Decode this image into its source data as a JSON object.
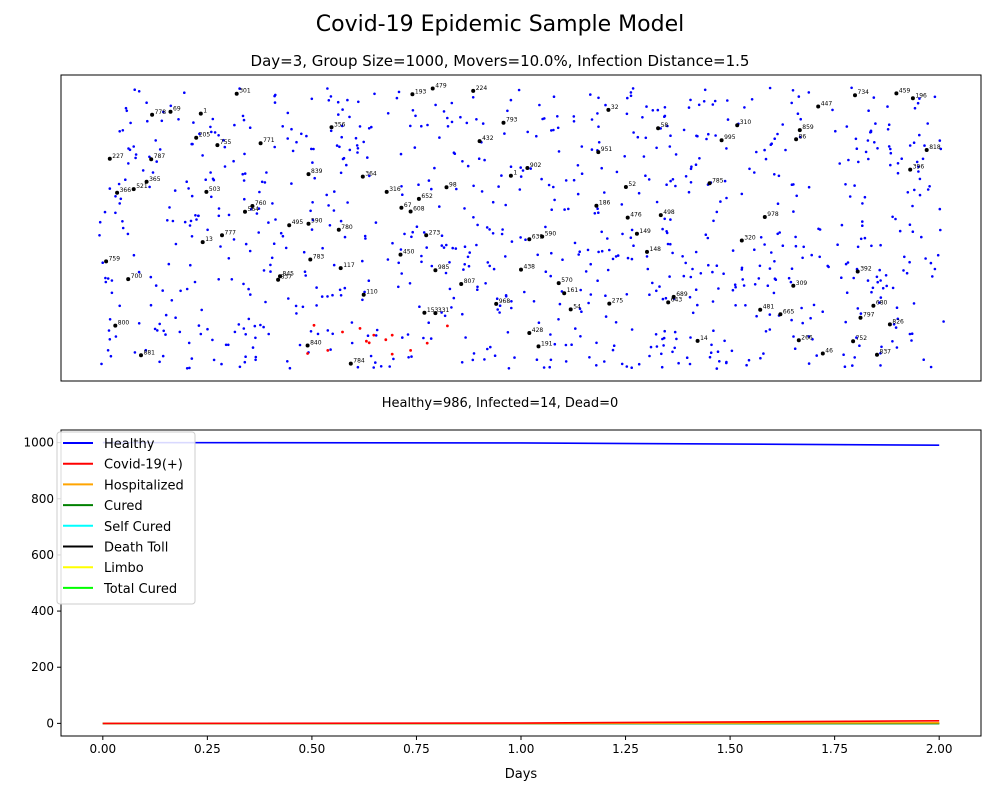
{
  "figure": {
    "title": "Covid-19 Epidemic Sample Model",
    "subtitle": "Day=3, Group Size=1000, Movers=10.0%, Infection Distance=1.5",
    "status_text": "Healthy=986, Infected=14, Dead=0"
  },
  "colors": {
    "healthy": "#0000ff",
    "infected": "#ff0000",
    "hospitalized": "#ffa500",
    "cured": "#008000",
    "self_cured": "#00ffff",
    "death_toll": "#000000",
    "limbo": "#ffff00",
    "total_cured": "#00ff00",
    "labeled_person": "#000000"
  },
  "chart_data": [
    {
      "type": "scatter",
      "title": "Day=3, Group Size=1000, Movers=10.0%, Infection Distance=1.5",
      "xlim": [
        0,
        100
      ],
      "ylim": [
        0,
        100
      ],
      "axes_ticks": false,
      "grid": false,
      "labeled_points": [
        {
          "id": "69",
          "x": 11.9,
          "y": 88
        },
        {
          "id": "778",
          "x": 9.9,
          "y": 87
        },
        {
          "id": "1",
          "x": 15.2,
          "y": 87.4
        },
        {
          "id": "301",
          "x": 19.1,
          "y": 93.9
        },
        {
          "id": "193",
          "x": 38.2,
          "y": 93.7
        },
        {
          "id": "479",
          "x": 40.4,
          "y": 95.6
        },
        {
          "id": "224",
          "x": 44.8,
          "y": 94.8
        },
        {
          "id": "32",
          "x": 59.5,
          "y": 88.6
        },
        {
          "id": "447",
          "x": 82.3,
          "y": 89.7
        },
        {
          "id": "734",
          "x": 86.3,
          "y": 93.4
        },
        {
          "id": "459",
          "x": 90.8,
          "y": 94
        },
        {
          "id": "196",
          "x": 92.6,
          "y": 92.4
        },
        {
          "id": "205",
          "x": 14.7,
          "y": 79.5
        },
        {
          "id": "755",
          "x": 17,
          "y": 77.1
        },
        {
          "id": "771",
          "x": 21.7,
          "y": 77.7
        },
        {
          "id": "356",
          "x": 29.4,
          "y": 82.9
        },
        {
          "id": "793",
          "x": 48.1,
          "y": 84.4
        },
        {
          "id": "432",
          "x": 45.5,
          "y": 78.4
        },
        {
          "id": "58",
          "x": 64.9,
          "y": 82.6
        },
        {
          "id": "310",
          "x": 73.5,
          "y": 83.6
        },
        {
          "id": "995",
          "x": 71.8,
          "y": 78.7
        },
        {
          "id": "859",
          "x": 80.3,
          "y": 82
        },
        {
          "id": "86",
          "x": 79.9,
          "y": 79
        },
        {
          "id": "227",
          "x": 5.3,
          "y": 72.6
        },
        {
          "id": "787",
          "x": 9.8,
          "y": 72.5
        },
        {
          "id": "818",
          "x": 94.1,
          "y": 75.5
        },
        {
          "id": "951",
          "x": 58.4,
          "y": 74.8
        },
        {
          "id": "902",
          "x": 50.7,
          "y": 69.6
        },
        {
          "id": "365",
          "x": 9.3,
          "y": 65.1
        },
        {
          "id": "521",
          "x": 7.9,
          "y": 62.7
        },
        {
          "id": "366",
          "x": 6.1,
          "y": 61.5
        },
        {
          "id": "503",
          "x": 15.8,
          "y": 61.8
        },
        {
          "id": "839",
          "x": 26.9,
          "y": 67.6
        },
        {
          "id": "364",
          "x": 32.8,
          "y": 66.8
        },
        {
          "id": "316",
          "x": 35.4,
          "y": 61.8
        },
        {
          "id": "98",
          "x": 41.9,
          "y": 63.3
        },
        {
          "id": "1b",
          "x": 48.9,
          "y": 67.1
        },
        {
          "id": "52",
          "x": 61.4,
          "y": 63.4
        },
        {
          "id": "785",
          "x": 70.5,
          "y": 64.6
        },
        {
          "id": "396",
          "x": 92.3,
          "y": 69.1
        },
        {
          "id": "760",
          "x": 20.8,
          "y": 57.2
        },
        {
          "id": "564",
          "x": 20,
          "y": 55.3
        },
        {
          "id": "67",
          "x": 37,
          "y": 56.6
        },
        {
          "id": "652",
          "x": 38.9,
          "y": 59.5
        },
        {
          "id": "608",
          "x": 38,
          "y": 55.4
        },
        {
          "id": "186",
          "x": 58.2,
          "y": 57.3
        },
        {
          "id": "498",
          "x": 65.2,
          "y": 54.2
        },
        {
          "id": "476",
          "x": 61.6,
          "y": 53.4
        },
        {
          "id": "978",
          "x": 76.5,
          "y": 53.6
        },
        {
          "id": "13",
          "x": 15.4,
          "y": 45.4
        },
        {
          "id": "777",
          "x": 17.5,
          "y": 47.6
        },
        {
          "id": "495",
          "x": 24.8,
          "y": 50.9
        },
        {
          "id": "590",
          "x": 26.9,
          "y": 51.4
        },
        {
          "id": "780",
          "x": 30.2,
          "y": 49.4
        },
        {
          "id": "273",
          "x": 39.7,
          "y": 47.6
        },
        {
          "id": "639",
          "x": 50.9,
          "y": 46.3
        },
        {
          "id": "590b",
          "x": 52.3,
          "y": 47.2
        },
        {
          "id": "149",
          "x": 62.6,
          "y": 48.1
        },
        {
          "id": "320",
          "x": 74,
          "y": 45.9
        },
        {
          "id": "759",
          "x": 4.9,
          "y": 39.1
        },
        {
          "id": "783",
          "x": 27.1,
          "y": 39.7
        },
        {
          "id": "117",
          "x": 30.4,
          "y": 36.9
        },
        {
          "id": "450",
          "x": 36.9,
          "y": 41.3
        },
        {
          "id": "985",
          "x": 40.7,
          "y": 36.2
        },
        {
          "id": "148",
          "x": 63.7,
          "y": 42.2
        },
        {
          "id": "438",
          "x": 50,
          "y": 36.4
        },
        {
          "id": "392",
          "x": 86.6,
          "y": 35.8
        },
        {
          "id": "700",
          "x": 7.3,
          "y": 33.3
        },
        {
          "id": "845",
          "x": 23.8,
          "y": 34.2
        },
        {
          "id": "837",
          "x": 23.6,
          "y": 33.1
        },
        {
          "id": "807",
          "x": 43.5,
          "y": 31.7
        },
        {
          "id": "570",
          "x": 54.1,
          "y": 32
        },
        {
          "id": "309",
          "x": 79.6,
          "y": 31.1
        },
        {
          "id": "110",
          "x": 32.9,
          "y": 28.2
        },
        {
          "id": "161",
          "x": 54.7,
          "y": 28.7
        },
        {
          "id": "689",
          "x": 66.6,
          "y": 27.5
        },
        {
          "id": "643",
          "x": 66,
          "y": 25.7
        },
        {
          "id": "968",
          "x": 47.3,
          "y": 25.2
        },
        {
          "id": "275",
          "x": 59.6,
          "y": 25.3
        },
        {
          "id": "54",
          "x": 55.4,
          "y": 23.4
        },
        {
          "id": "481",
          "x": 76,
          "y": 23.3
        },
        {
          "id": "665",
          "x": 78.2,
          "y": 21.8
        },
        {
          "id": "680",
          "x": 88.3,
          "y": 24.6
        },
        {
          "id": "797",
          "x": 86.9,
          "y": 20.7
        },
        {
          "id": "153",
          "x": 39.5,
          "y": 22.3
        },
        {
          "id": "331",
          "x": 40.7,
          "y": 22.2
        },
        {
          "id": "800",
          "x": 5.9,
          "y": 18.1
        },
        {
          "id": "428",
          "x": 50.9,
          "y": 15.7
        },
        {
          "id": "826",
          "x": 90.1,
          "y": 18.5
        },
        {
          "id": "840",
          "x": 26.8,
          "y": 11.6
        },
        {
          "id": "191",
          "x": 51.9,
          "y": 11.3
        },
        {
          "id": "14",
          "x": 69.2,
          "y": 13.1
        },
        {
          "id": "266",
          "x": 80.2,
          "y": 13.3
        },
        {
          "id": "752",
          "x": 86.1,
          "y": 13
        },
        {
          "id": "881",
          "x": 8.7,
          "y": 8.4
        },
        {
          "id": "784",
          "x": 31.5,
          "y": 5.7
        },
        {
          "id": "46",
          "x": 82.8,
          "y": 9
        },
        {
          "id": "837b",
          "x": 88.7,
          "y": 8.6
        }
      ]
    },
    {
      "type": "line",
      "title": "",
      "xlabel": "Days",
      "ylabel": "",
      "x": [
        0,
        1,
        2
      ],
      "xlim": [
        -0.1,
        2.1
      ],
      "ylim": [
        -45,
        1045
      ],
      "xticks": [
        "0.00",
        "0.25",
        "0.50",
        "0.75",
        "1.00",
        "1.25",
        "1.50",
        "1.75",
        "2.00"
      ],
      "xtick_values": [
        0,
        0.25,
        0.5,
        0.75,
        1,
        1.25,
        1.5,
        1.75,
        2
      ],
      "yticks": [
        "0",
        "200",
        "400",
        "600",
        "800",
        "1000"
      ],
      "ytick_values": [
        0,
        200,
        400,
        600,
        800,
        1000
      ],
      "grid": false,
      "legend": "upper-left",
      "series": [
        {
          "name": "Healthy",
          "color": "#0000ff",
          "values": [
            1000,
            999,
            991
          ]
        },
        {
          "name": "Covid-19(+)",
          "color": "#ff0000",
          "values": [
            0,
            1,
            9
          ]
        },
        {
          "name": "Hospitalized",
          "color": "#ffa500",
          "values": [
            0,
            0,
            2
          ]
        },
        {
          "name": "Cured",
          "color": "#008000",
          "values": [
            0,
            0,
            0
          ]
        },
        {
          "name": "Self Cured",
          "color": "#00ffff",
          "values": [
            0,
            0,
            0
          ]
        },
        {
          "name": "Death Toll",
          "color": "#000000",
          "values": [
            0,
            0,
            0
          ]
        },
        {
          "name": "Limbo",
          "color": "#ffff00",
          "values": [
            0,
            0,
            0
          ]
        },
        {
          "name": "Total Cured",
          "color": "#00ff00",
          "values": [
            0,
            0,
            0
          ]
        }
      ]
    }
  ]
}
